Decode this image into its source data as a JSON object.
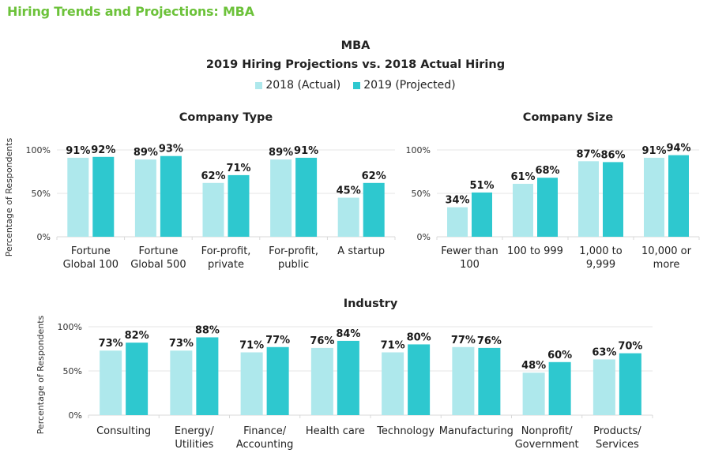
{
  "page_title": "Hiring Trends and Projections: MBA",
  "header": {
    "title": "MBA",
    "subtitle": "2019 Hiring Projections vs. 2018 Actual Hiring"
  },
  "colors": {
    "title_green": "#6cc23a",
    "series_2018": "#aee8ec",
    "series_2019": "#2ec8cf",
    "gridline": "#e6e6e6"
  },
  "legend": [
    {
      "label": "2018 (Actual)",
      "color": "#aee8ec"
    },
    {
      "label": "2019 (Projected)",
      "color": "#2ec8cf"
    }
  ],
  "chart_data": [
    {
      "type": "bar",
      "title": "Company Type",
      "xlabel": "",
      "ylabel": "Percentage of Respondents",
      "ylim": [
        0,
        100
      ],
      "yticks": [
        "0%",
        "50%",
        "100%"
      ],
      "grid": true,
      "legend": "top-center",
      "categories": [
        [
          "Fortune",
          "Global 100"
        ],
        [
          "Fortune",
          "Global 500"
        ],
        [
          "For-profit,",
          "private"
        ],
        [
          "For-profit,",
          "public"
        ],
        [
          "A startup"
        ]
      ],
      "series": [
        {
          "name": "2018 (Actual)",
          "values": [
            91,
            89,
            62,
            89,
            45
          ]
        },
        {
          "name": "2019 (Projected)",
          "values": [
            92,
            93,
            71,
            91,
            62
          ]
        }
      ]
    },
    {
      "type": "bar",
      "title": "Company Size",
      "xlabel": "",
      "ylabel": "",
      "ylim": [
        0,
        100
      ],
      "yticks": [
        "0%",
        "50%",
        "100%"
      ],
      "grid": true,
      "legend": "top-center",
      "categories": [
        [
          "Fewer than",
          "100"
        ],
        [
          "100 to 999"
        ],
        [
          "1,000 to",
          "9,999"
        ],
        [
          "10,000 or",
          "more"
        ]
      ],
      "series": [
        {
          "name": "2018 (Actual)",
          "values": [
            34,
            61,
            87,
            91
          ]
        },
        {
          "name": "2019 (Projected)",
          "values": [
            51,
            68,
            86,
            94
          ]
        }
      ]
    },
    {
      "type": "bar",
      "title": "Industry",
      "xlabel": "",
      "ylabel": "Percentage of Respondents",
      "ylim": [
        0,
        100
      ],
      "yticks": [
        "0%",
        "50%",
        "100%"
      ],
      "grid": true,
      "legend": "top-center",
      "categories": [
        [
          "Consulting"
        ],
        [
          "Energy/",
          "Utilities"
        ],
        [
          "Finance/",
          "Accounting"
        ],
        [
          "Health care"
        ],
        [
          "Technology"
        ],
        [
          "Manufacturing"
        ],
        [
          "Nonprofit/",
          "Government"
        ],
        [
          "Products/",
          "Services"
        ]
      ],
      "series": [
        {
          "name": "2018 (Actual)",
          "values": [
            73,
            73,
            71,
            76,
            71,
            77,
            48,
            63
          ]
        },
        {
          "name": "2019 (Projected)",
          "values": [
            82,
            88,
            77,
            84,
            80,
            76,
            60,
            70
          ]
        }
      ]
    }
  ]
}
